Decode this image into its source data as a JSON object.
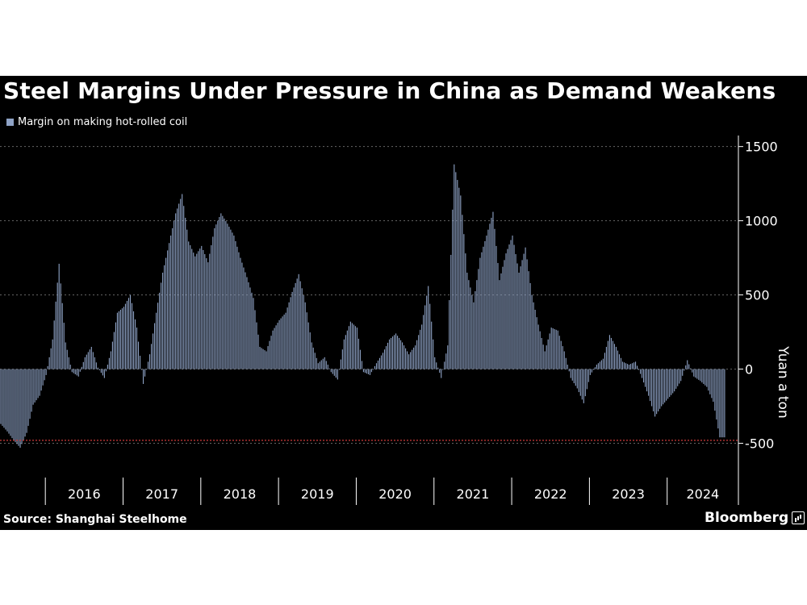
{
  "colors": {
    "background": "#000000",
    "bar": "#8fa3c6",
    "grid": "#666666",
    "reference_line": "#d03a3a",
    "text": "#ffffff"
  },
  "source": "Source: Shanghai Steelhome",
  "brand": {
    "name": "Bloomberg",
    "icon": "bar-chart-icon"
  },
  "chart_data": {
    "type": "bar",
    "title": "Steel Margins Under Pressure in China as Demand Weakens",
    "ylabel": "Yuan a ton",
    "ylim": [
      -720,
      1520
    ],
    "yticks": [
      1500,
      1000,
      500,
      0,
      -500
    ],
    "ytick_labels": [
      "1500",
      "1000",
      "500",
      "0",
      "-500"
    ],
    "x_start": "2015-06",
    "x_end": "2024-11",
    "year_boundaries": [
      "2016-01",
      "2017-01",
      "2018-01",
      "2019-01",
      "2020-01",
      "2021-01",
      "2022-01",
      "2023-01",
      "2024-01"
    ],
    "year_labels": [
      "2016",
      "2017",
      "2018",
      "2019",
      "2020",
      "2021",
      "2022",
      "2023",
      "2024"
    ],
    "grid": "horizontal dotted",
    "reference_line": {
      "value": -480,
      "style": "dotted red"
    },
    "legend": {
      "position": "top-left"
    },
    "series": [
      {
        "name": "Margin on making hot-rolled coil",
        "points": [
          [
            "2015-06",
            -370
          ],
          [
            "2015-07",
            -420
          ],
          [
            "2015-08",
            -480
          ],
          [
            "2015-09",
            -530
          ],
          [
            "2015-10",
            -430
          ],
          [
            "2015-11",
            -240
          ],
          [
            "2015-12",
            -180
          ],
          [
            "2016-01",
            -40
          ],
          [
            "2016-02",
            200
          ],
          [
            "2016-03",
            710
          ],
          [
            "2016-04",
            180
          ],
          [
            "2016-05",
            -20
          ],
          [
            "2016-06",
            -50
          ],
          [
            "2016-07",
            80
          ],
          [
            "2016-08",
            150
          ],
          [
            "2016-09",
            10
          ],
          [
            "2016-10",
            -60
          ],
          [
            "2016-11",
            120
          ],
          [
            "2016-12",
            380
          ],
          [
            "2017-01",
            420
          ],
          [
            "2017-02",
            500
          ],
          [
            "2017-03",
            280
          ],
          [
            "2017-04",
            -100
          ],
          [
            "2017-05",
            100
          ],
          [
            "2017-06",
            380
          ],
          [
            "2017-07",
            650
          ],
          [
            "2017-08",
            850
          ],
          [
            "2017-09",
            1050
          ],
          [
            "2017-10",
            1180
          ],
          [
            "2017-11",
            860
          ],
          [
            "2017-12",
            760
          ],
          [
            "2018-01",
            830
          ],
          [
            "2018-02",
            720
          ],
          [
            "2018-03",
            950
          ],
          [
            "2018-04",
            1050
          ],
          [
            "2018-05",
            980
          ],
          [
            "2018-06",
            900
          ],
          [
            "2018-07",
            750
          ],
          [
            "2018-08",
            620
          ],
          [
            "2018-09",
            480
          ],
          [
            "2018-10",
            150
          ],
          [
            "2018-11",
            120
          ],
          [
            "2018-12",
            260
          ],
          [
            "2019-01",
            330
          ],
          [
            "2019-02",
            380
          ],
          [
            "2019-03",
            520
          ],
          [
            "2019-04",
            640
          ],
          [
            "2019-05",
            450
          ],
          [
            "2019-06",
            180
          ],
          [
            "2019-07",
            40
          ],
          [
            "2019-08",
            80
          ],
          [
            "2019-09",
            -20
          ],
          [
            "2019-10",
            -70
          ],
          [
            "2019-11",
            200
          ],
          [
            "2019-12",
            320
          ],
          [
            "2020-01",
            280
          ],
          [
            "2020-02",
            -20
          ],
          [
            "2020-03",
            -40
          ],
          [
            "2020-04",
            40
          ],
          [
            "2020-05",
            110
          ],
          [
            "2020-06",
            200
          ],
          [
            "2020-07",
            240
          ],
          [
            "2020-08",
            180
          ],
          [
            "2020-09",
            100
          ],
          [
            "2020-10",
            160
          ],
          [
            "2020-11",
            300
          ],
          [
            "2020-12",
            560
          ],
          [
            "2021-01",
            80
          ],
          [
            "2021-02",
            -60
          ],
          [
            "2021-03",
            160
          ],
          [
            "2021-04",
            1380
          ],
          [
            "2021-05",
            1170
          ],
          [
            "2021-06",
            650
          ],
          [
            "2021-07",
            450
          ],
          [
            "2021-08",
            750
          ],
          [
            "2021-09",
            900
          ],
          [
            "2021-10",
            1060
          ],
          [
            "2021-11",
            600
          ],
          [
            "2021-12",
            780
          ],
          [
            "2022-01",
            900
          ],
          [
            "2022-02",
            650
          ],
          [
            "2022-03",
            820
          ],
          [
            "2022-04",
            500
          ],
          [
            "2022-05",
            300
          ],
          [
            "2022-06",
            120
          ],
          [
            "2022-07",
            280
          ],
          [
            "2022-08",
            260
          ],
          [
            "2022-09",
            120
          ],
          [
            "2022-10",
            -60
          ],
          [
            "2022-11",
            -130
          ],
          [
            "2022-12",
            -230
          ],
          [
            "2023-01",
            -40
          ],
          [
            "2023-02",
            30
          ],
          [
            "2023-03",
            70
          ],
          [
            "2023-04",
            230
          ],
          [
            "2023-05",
            150
          ],
          [
            "2023-06",
            50
          ],
          [
            "2023-07",
            30
          ],
          [
            "2023-08",
            50
          ],
          [
            "2023-09",
            -60
          ],
          [
            "2023-10",
            -180
          ],
          [
            "2023-11",
            -320
          ],
          [
            "2023-12",
            -250
          ],
          [
            "2024-01",
            -200
          ],
          [
            "2024-02",
            -150
          ],
          [
            "2024-03",
            -80
          ],
          [
            "2024-04",
            60
          ],
          [
            "2024-05",
            -50
          ],
          [
            "2024-06",
            -80
          ],
          [
            "2024-07",
            -120
          ],
          [
            "2024-08",
            -220
          ],
          [
            "2024-09",
            -460
          ]
        ]
      }
    ]
  }
}
